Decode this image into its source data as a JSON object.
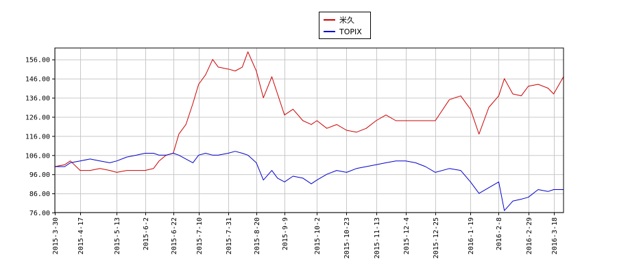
{
  "chart_data": {
    "type": "line",
    "title": "",
    "xlabel": "",
    "ylabel": "",
    "ylim": [
      76,
      162
    ],
    "yticks": [
      "156.00",
      "146.00",
      "136.00",
      "126.00",
      "116.00",
      "106.00",
      "96.00",
      "86.00",
      "76.00"
    ],
    "ytick_values": [
      156,
      146,
      136,
      126,
      116,
      106,
      96,
      86,
      76
    ],
    "xticks": [
      "2015-3-30",
      "2015-4-17",
      "2015-5-13",
      "2015-6-2",
      "2015-6-22",
      "2015-7-10",
      "2015-7-31",
      "2015-8-20",
      "2015-9-9",
      "2015-10-2",
      "2015-10-23",
      "2015-11-13",
      "2015-12-4",
      "2015-12-25",
      "2016-1-19",
      "2016-2-8",
      "2016-2-29",
      "2016-3-18"
    ],
    "grid": true,
    "legend": "top-center",
    "series": [
      {
        "name": "米久",
        "color": "#cc0000",
        "x": [
          "2015-3-30",
          "2015-4-6",
          "2015-4-10",
          "2015-4-17",
          "2015-4-24",
          "2015-5-1",
          "2015-5-8",
          "2015-5-13",
          "2015-5-20",
          "2015-5-27",
          "2015-6-2",
          "2015-6-8",
          "2015-6-12",
          "2015-6-17",
          "2015-6-22",
          "2015-6-26",
          "2015-7-1",
          "2015-7-6",
          "2015-7-10",
          "2015-7-15",
          "2015-7-20",
          "2015-7-24",
          "2015-7-31",
          "2015-8-5",
          "2015-8-10",
          "2015-8-14",
          "2015-8-20",
          "2015-8-25",
          "2015-8-31",
          "2015-9-4",
          "2015-9-9",
          "2015-9-15",
          "2015-9-22",
          "2015-9-28",
          "2015-10-2",
          "2015-10-9",
          "2015-10-16",
          "2015-10-23",
          "2015-10-30",
          "2015-11-6",
          "2015-11-13",
          "2015-11-20",
          "2015-11-27",
          "2015-12-4",
          "2015-12-11",
          "2015-12-18",
          "2015-12-25",
          "2016-1-4",
          "2016-1-12",
          "2016-1-19",
          "2016-1-25",
          "2016-2-1",
          "2016-2-8",
          "2016-2-12",
          "2016-2-18",
          "2016-2-24",
          "2016-2-29",
          "2016-3-7",
          "2016-3-14",
          "2016-3-18",
          "2016-3-25"
        ],
        "values": [
          100,
          101,
          103,
          98,
          98,
          99,
          98,
          97,
          98,
          98,
          98,
          99,
          103,
          106,
          107,
          117,
          122,
          133,
          143,
          148,
          156,
          152,
          151,
          150,
          152,
          160,
          150,
          136,
          147,
          138,
          127,
          130,
          124,
          122,
          124,
          120,
          122,
          119,
          118,
          120,
          124,
          127,
          124,
          124,
          124,
          124,
          124,
          135,
          137,
          130,
          117,
          131,
          137,
          146,
          138,
          137,
          142,
          143,
          141,
          138,
          147
        ]
      },
      {
        "name": "TOPIX",
        "color": "#0000cc",
        "x": [
          "2015-3-30",
          "2015-4-6",
          "2015-4-10",
          "2015-4-17",
          "2015-4-24",
          "2015-5-1",
          "2015-5-8",
          "2015-5-13",
          "2015-5-20",
          "2015-5-27",
          "2015-6-2",
          "2015-6-8",
          "2015-6-12",
          "2015-6-17",
          "2015-6-22",
          "2015-6-26",
          "2015-7-1",
          "2015-7-6",
          "2015-7-10",
          "2015-7-15",
          "2015-7-20",
          "2015-7-24",
          "2015-7-31",
          "2015-8-5",
          "2015-8-10",
          "2015-8-14",
          "2015-8-20",
          "2015-8-25",
          "2015-8-31",
          "2015-9-4",
          "2015-9-9",
          "2015-9-15",
          "2015-9-22",
          "2015-9-28",
          "2015-10-2",
          "2015-10-9",
          "2015-10-16",
          "2015-10-23",
          "2015-10-30",
          "2015-11-6",
          "2015-11-13",
          "2015-11-20",
          "2015-11-27",
          "2015-12-4",
          "2015-12-11",
          "2015-12-18",
          "2015-12-25",
          "2016-1-4",
          "2016-1-12",
          "2016-1-19",
          "2016-1-25",
          "2016-2-1",
          "2016-2-8",
          "2016-2-12",
          "2016-2-18",
          "2016-2-24",
          "2016-2-29",
          "2016-3-7",
          "2016-3-14",
          "2016-3-18",
          "2016-3-25"
        ],
        "values": [
          100,
          100,
          102,
          103,
          104,
          103,
          102,
          103,
          105,
          106,
          107,
          107,
          106,
          106,
          107,
          106,
          104,
          102,
          106,
          107,
          106,
          106,
          107,
          108,
          107,
          106,
          102,
          93,
          98,
          94,
          92,
          95,
          94,
          91,
          93,
          96,
          98,
          97,
          99,
          100,
          101,
          102,
          103,
          103,
          102,
          100,
          97,
          99,
          98,
          92,
          86,
          89,
          92,
          77,
          82,
          83,
          84,
          88,
          87,
          88,
          88
        ]
      }
    ]
  }
}
